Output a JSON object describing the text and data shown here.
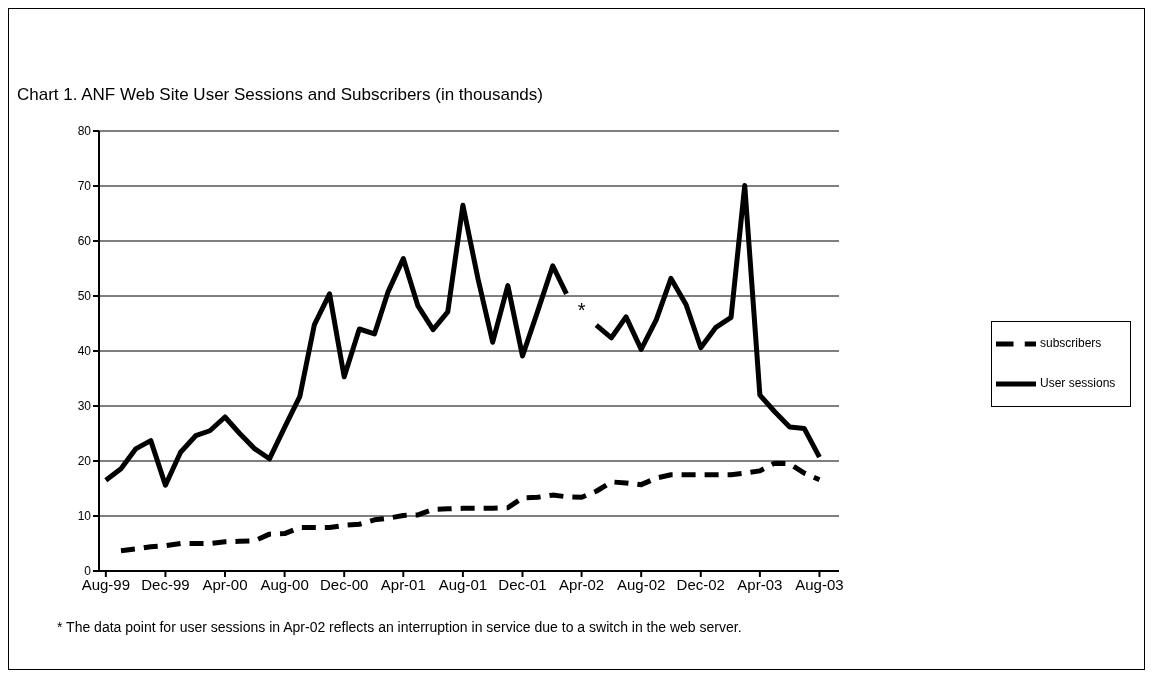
{
  "chart_data": {
    "type": "line",
    "title": "Chart 1.  ANF Web Site User Sessions and Subscribers (in thousands)",
    "x": [
      "1999-08",
      "1999-09",
      "1999-10",
      "1999-11",
      "1999-12",
      "2000-01",
      "2000-02",
      "2000-03",
      "2000-04",
      "2000-05",
      "2000-06",
      "2000-07",
      "2000-08",
      "2000-09",
      "2000-10",
      "2000-11",
      "2000-12",
      "2001-01",
      "2001-02",
      "2001-03",
      "2001-04",
      "2001-05",
      "2001-06",
      "2001-07",
      "2001-08",
      "2001-09",
      "2001-10",
      "2001-11",
      "2001-12",
      "2002-01",
      "2002-02",
      "2002-03",
      "2002-04",
      "2002-05",
      "2002-06",
      "2002-07",
      "2002-08",
      "2002-09",
      "2002-10",
      "2002-11",
      "2002-12",
      "2003-01",
      "2003-02",
      "2003-03",
      "2003-04",
      "2003-05",
      "2003-06",
      "2003-07",
      "2003-08"
    ],
    "series": [
      {
        "name": "subscribers",
        "color": "#000000",
        "line_style": "dashed",
        "values": [
          null,
          3.7,
          4.0,
          4.4,
          4.6,
          5.0,
          5.0,
          5.0,
          5.3,
          5.4,
          5.5,
          6.7,
          6.8,
          7.9,
          7.9,
          7.9,
          8.3,
          8.5,
          9.3,
          9.6,
          10.1,
          10.2,
          11.2,
          11.3,
          11.4,
          11.4,
          11.4,
          11.5,
          13.3,
          13.4,
          13.8,
          13.5,
          13.4,
          14.5,
          16.2,
          16.0,
          15.7,
          16.9,
          17.5,
          17.5,
          17.5,
          17.5,
          17.5,
          17.8,
          18.2,
          19.6,
          19.5,
          17.8,
          16.6
        ]
      },
      {
        "name": "User sessions",
        "color": "#000000",
        "line_style": "solid",
        "values": [
          16.5,
          18.6,
          22.2,
          23.7,
          15.6,
          21.6,
          24.6,
          25.5,
          28.0,
          25.0,
          22.2,
          20.4,
          26.1,
          31.7,
          44.8,
          50.4,
          35.3,
          44.0,
          43.1,
          50.8,
          56.8,
          48.2,
          43.9,
          47.1,
          66.5,
          53.1,
          41.6,
          51.9,
          39.1,
          47.2,
          55.5,
          50.4,
          null,
          44.7,
          42.4,
          46.2,
          40.3,
          45.7,
          53.2,
          48.4,
          40.6,
          44.3,
          46.1,
          70.1,
          32.0,
          29.0,
          26.2,
          25.9,
          20.7
        ]
      }
    ],
    "xlim": [
      "1999-07-18",
      "2003-09-10"
    ],
    "xticks": [
      {
        "value": "1999-08",
        "label": "Aug-99"
      },
      {
        "value": "1999-12",
        "label": "Dec-99"
      },
      {
        "value": "2000-04",
        "label": "Apr-00"
      },
      {
        "value": "2000-08",
        "label": "Aug-00"
      },
      {
        "value": "2000-12",
        "label": "Dec-00"
      },
      {
        "value": "2001-04",
        "label": "Apr-01"
      },
      {
        "value": "2001-08",
        "label": "Aug-01"
      },
      {
        "value": "2001-12",
        "label": "Dec-01"
      },
      {
        "value": "2002-04",
        "label": "Apr-02"
      },
      {
        "value": "2002-08",
        "label": "Aug-02"
      },
      {
        "value": "2002-12",
        "label": "Dec-02"
      },
      {
        "value": "2003-04",
        "label": "Apr-03"
      },
      {
        "value": "2003-08",
        "label": "Aug-03"
      }
    ],
    "ylim": [
      0,
      80
    ],
    "yticks": [
      0,
      10,
      20,
      30,
      40,
      50,
      60,
      70,
      80
    ],
    "grid": "y",
    "legend": "right",
    "annotations": [
      "*",
      "* The data point for user sessions in Apr-02 reflects an interruption in service due to a switch in the web server."
    ]
  }
}
